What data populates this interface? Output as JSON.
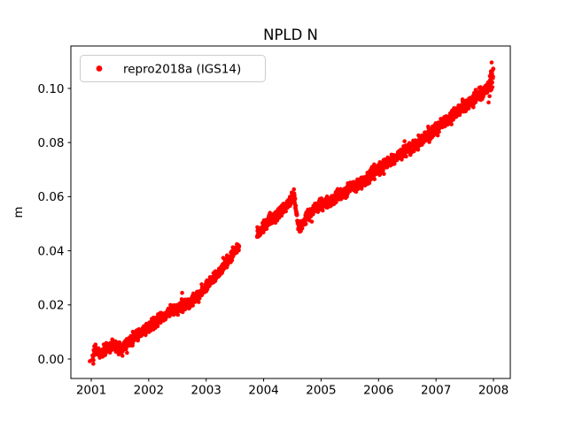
{
  "figure": {
    "title": "NPLD N",
    "ylabel": "m",
    "xlabel": ""
  },
  "legend": {
    "label": "repro2018a (IGS14)",
    "marker": "red-dot-icon",
    "position": "upper left"
  },
  "colors": {
    "marker": "#ff0000",
    "text": "#000000",
    "spine": "#000000",
    "legend_border": "#cccccc",
    "background": "#ffffff"
  },
  "chart_data": {
    "type": "scatter",
    "title": "NPLD N",
    "xlabel": "",
    "ylabel": "m",
    "series_name": "repro2018a (IGS14)",
    "marker_color": "#ff0000",
    "grid": false,
    "legend_position": "upper left",
    "xlim": [
      2000.65,
      2008.29
    ],
    "ylim": [
      -0.0072,
      0.1157
    ],
    "xticks": [
      2001,
      2002,
      2003,
      2004,
      2005,
      2006,
      2007,
      2008
    ],
    "yticks": [
      0.0,
      0.02,
      0.04,
      0.06,
      0.08,
      0.1
    ],
    "ytick_labels": [
      "0.00",
      "0.02",
      "0.04",
      "0.06",
      "0.08",
      "0.10"
    ],
    "t_start": 2001.02,
    "t_end": 2008.0,
    "points_per_year": 365,
    "noise_sigma": 0.001,
    "outlier_prob": 0.02,
    "outlier_scale": 0.007,
    "end_spread": {
      "from": 2007.93,
      "factor": 2.5
    },
    "marker_radius": 2.3,
    "seed": 42,
    "gaps": [
      [
        2003.575,
        2003.885
      ]
    ],
    "extra_points": [
      [
        2000.975,
        -0.0008
      ],
      [
        2007.968,
        0.1096
      ]
    ],
    "trend_anchors": [
      [
        2001.02,
        0.0008
      ],
      [
        2001.08,
        0.0035
      ],
      [
        2001.15,
        0.0022
      ],
      [
        2001.22,
        0.003
      ],
      [
        2001.3,
        0.0045
      ],
      [
        2001.38,
        0.005
      ],
      [
        2001.45,
        0.0042
      ],
      [
        2001.52,
        0.0038
      ],
      [
        2001.6,
        0.0052
      ],
      [
        2001.7,
        0.0068
      ],
      [
        2001.8,
        0.0088
      ],
      [
        2001.9,
        0.0104
      ],
      [
        2002.0,
        0.0116
      ],
      [
        2002.1,
        0.0136
      ],
      [
        2002.2,
        0.0148
      ],
      [
        2002.3,
        0.016
      ],
      [
        2002.4,
        0.0176
      ],
      [
        2002.5,
        0.0186
      ],
      [
        2002.6,
        0.0196
      ],
      [
        2002.7,
        0.0205
      ],
      [
        2002.8,
        0.0222
      ],
      [
        2002.9,
        0.0242
      ],
      [
        2003.0,
        0.0265
      ],
      [
        2003.1,
        0.029
      ],
      [
        2003.2,
        0.0314
      ],
      [
        2003.3,
        0.034
      ],
      [
        2003.4,
        0.0368
      ],
      [
        2003.5,
        0.0398
      ],
      [
        2003.57,
        0.0413
      ],
      [
        2003.89,
        0.0465
      ],
      [
        2003.95,
        0.0476
      ],
      [
        2004.0,
        0.0488
      ],
      [
        2004.1,
        0.0512
      ],
      [
        2004.2,
        0.053
      ],
      [
        2004.3,
        0.0546
      ],
      [
        2004.4,
        0.0566
      ],
      [
        2004.48,
        0.0592
      ],
      [
        2004.53,
        0.0606
      ],
      [
        2004.56,
        0.056
      ],
      [
        2004.6,
        0.05
      ],
      [
        2004.64,
        0.0488
      ],
      [
        2004.7,
        0.0512
      ],
      [
        2004.8,
        0.0536
      ],
      [
        2004.9,
        0.0556
      ],
      [
        2005.0,
        0.057
      ],
      [
        2005.1,
        0.0578
      ],
      [
        2005.2,
        0.0586
      ],
      [
        2005.3,
        0.06
      ],
      [
        2005.4,
        0.0616
      ],
      [
        2005.5,
        0.063
      ],
      [
        2005.6,
        0.0641
      ],
      [
        2005.7,
        0.0652
      ],
      [
        2005.8,
        0.0666
      ],
      [
        2005.9,
        0.0688
      ],
      [
        2006.0,
        0.0706
      ],
      [
        2006.1,
        0.072
      ],
      [
        2006.2,
        0.073
      ],
      [
        2006.3,
        0.0743
      ],
      [
        2006.4,
        0.076
      ],
      [
        2006.5,
        0.0773
      ],
      [
        2006.6,
        0.0783
      ],
      [
        2006.7,
        0.08
      ],
      [
        2006.8,
        0.0815
      ],
      [
        2006.9,
        0.0833
      ],
      [
        2007.0,
        0.0852
      ],
      [
        2007.1,
        0.0868
      ],
      [
        2007.2,
        0.0882
      ],
      [
        2007.3,
        0.0898
      ],
      [
        2007.4,
        0.0918
      ],
      [
        2007.5,
        0.0937
      ],
      [
        2007.6,
        0.095
      ],
      [
        2007.7,
        0.0966
      ],
      [
        2007.8,
        0.0982
      ],
      [
        2007.9,
        0.1
      ],
      [
        2007.96,
        0.103
      ],
      [
        2008.0,
        0.1042
      ]
    ]
  }
}
